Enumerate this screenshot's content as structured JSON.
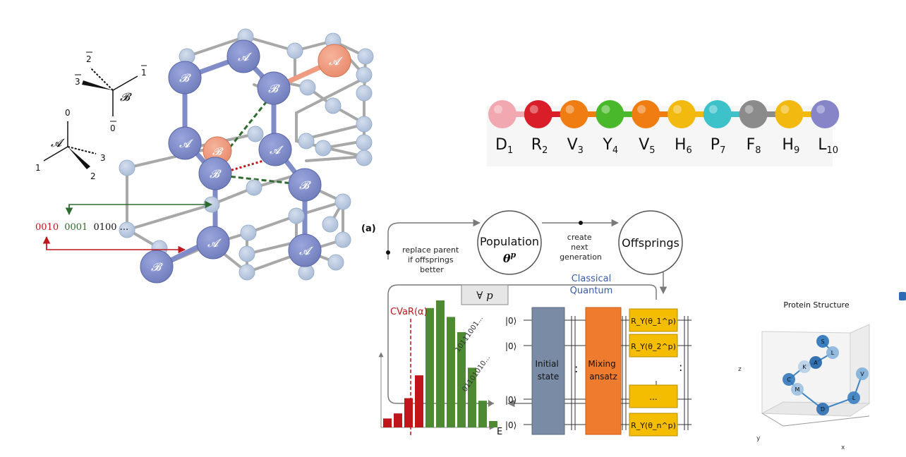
{
  "lattice": {
    "axes_b": {
      "label": "𝓑",
      "top": "2",
      "left": "3",
      "right": "1",
      "down": "0"
    },
    "axes_a": {
      "label": "𝓐",
      "top": "0",
      "right": "3",
      "left": "1",
      "down": "2"
    },
    "bits": {
      "red": "0010",
      "green": "0001",
      "rest": "0100 ..."
    },
    "atoms_a": [
      "𝓐",
      "𝓐",
      "𝓐",
      "𝓐",
      "𝓐",
      "𝓐",
      "𝓐"
    ],
    "atoms_b": [
      "𝓑",
      "𝓑",
      "𝓑",
      "𝓑",
      "𝓑",
      "𝓑",
      "𝓑"
    ],
    "colors": {
      "blue": "#7f8cc8",
      "orange": "#ef9b80",
      "light": "#b8c8e0",
      "green": "#2e6b2e",
      "red": "#c0151b"
    }
  },
  "chain": {
    "beads": [
      {
        "letter": "D",
        "index": "1",
        "color": "#f2a8b0"
      },
      {
        "letter": "R",
        "index": "2",
        "color": "#d91e2a"
      },
      {
        "letter": "V",
        "index": "3",
        "color": "#f07d12"
      },
      {
        "letter": "Y",
        "index": "4",
        "color": "#49b82a"
      },
      {
        "letter": "V",
        "index": "5",
        "color": "#f07d12"
      },
      {
        "letter": "H",
        "index": "6",
        "color": "#f2b90e"
      },
      {
        "letter": "P",
        "index": "7",
        "color": "#3cc2c8"
      },
      {
        "letter": "F",
        "index": "8",
        "color": "#8b8b8b"
      },
      {
        "letter": "H",
        "index": "9",
        "color": "#f2b90e"
      },
      {
        "letter": "L",
        "index": "10",
        "color": "#8585c8"
      }
    ]
  },
  "vqe": {
    "panel_label": "(a)",
    "population": "Population",
    "population_symbol": "θ",
    "population_sup": "p",
    "offsprings": "Offsprings",
    "create_next": [
      "create",
      "next",
      "generation"
    ],
    "replace_parent": [
      "replace parent",
      "if offsprings",
      "better"
    ],
    "classical": "Classical",
    "quantum": "Quantum",
    "forall": "∀ p",
    "cvar": "CVaR(α)",
    "bitstring_1": "10111001...",
    "bitstring_2": "01101010...",
    "energy_axis": "E",
    "kets": [
      "|0⟩",
      "|0⟩",
      "|0⟩",
      "|0⟩"
    ],
    "initial_state": [
      "Initial",
      "state"
    ],
    "mixing": [
      "Mixing",
      "ansatz"
    ],
    "gates": [
      "R_Y(θ_1^p)",
      "R_Y(θ_2^p)",
      "...",
      "R_Y(θ_n^p)"
    ],
    "gate_color": "#f5bd00",
    "initial_color": "#7a8ba6",
    "mixing_color": "#ef7c2e",
    "hist_red": [
      0.07,
      0.11,
      0.23,
      0.41
    ],
    "hist_green": [
      0.94,
      1.0,
      0.87,
      0.75,
      0.47,
      0.21,
      0.05
    ],
    "classical_color": "#3a5ba8"
  },
  "protein": {
    "title": "Protein Structure",
    "axis_x": "x",
    "axis_y": "y",
    "axis_z": "z",
    "residues": [
      "S",
      "L",
      "A",
      "K",
      "C",
      "M",
      "D",
      "L",
      "V"
    ]
  }
}
